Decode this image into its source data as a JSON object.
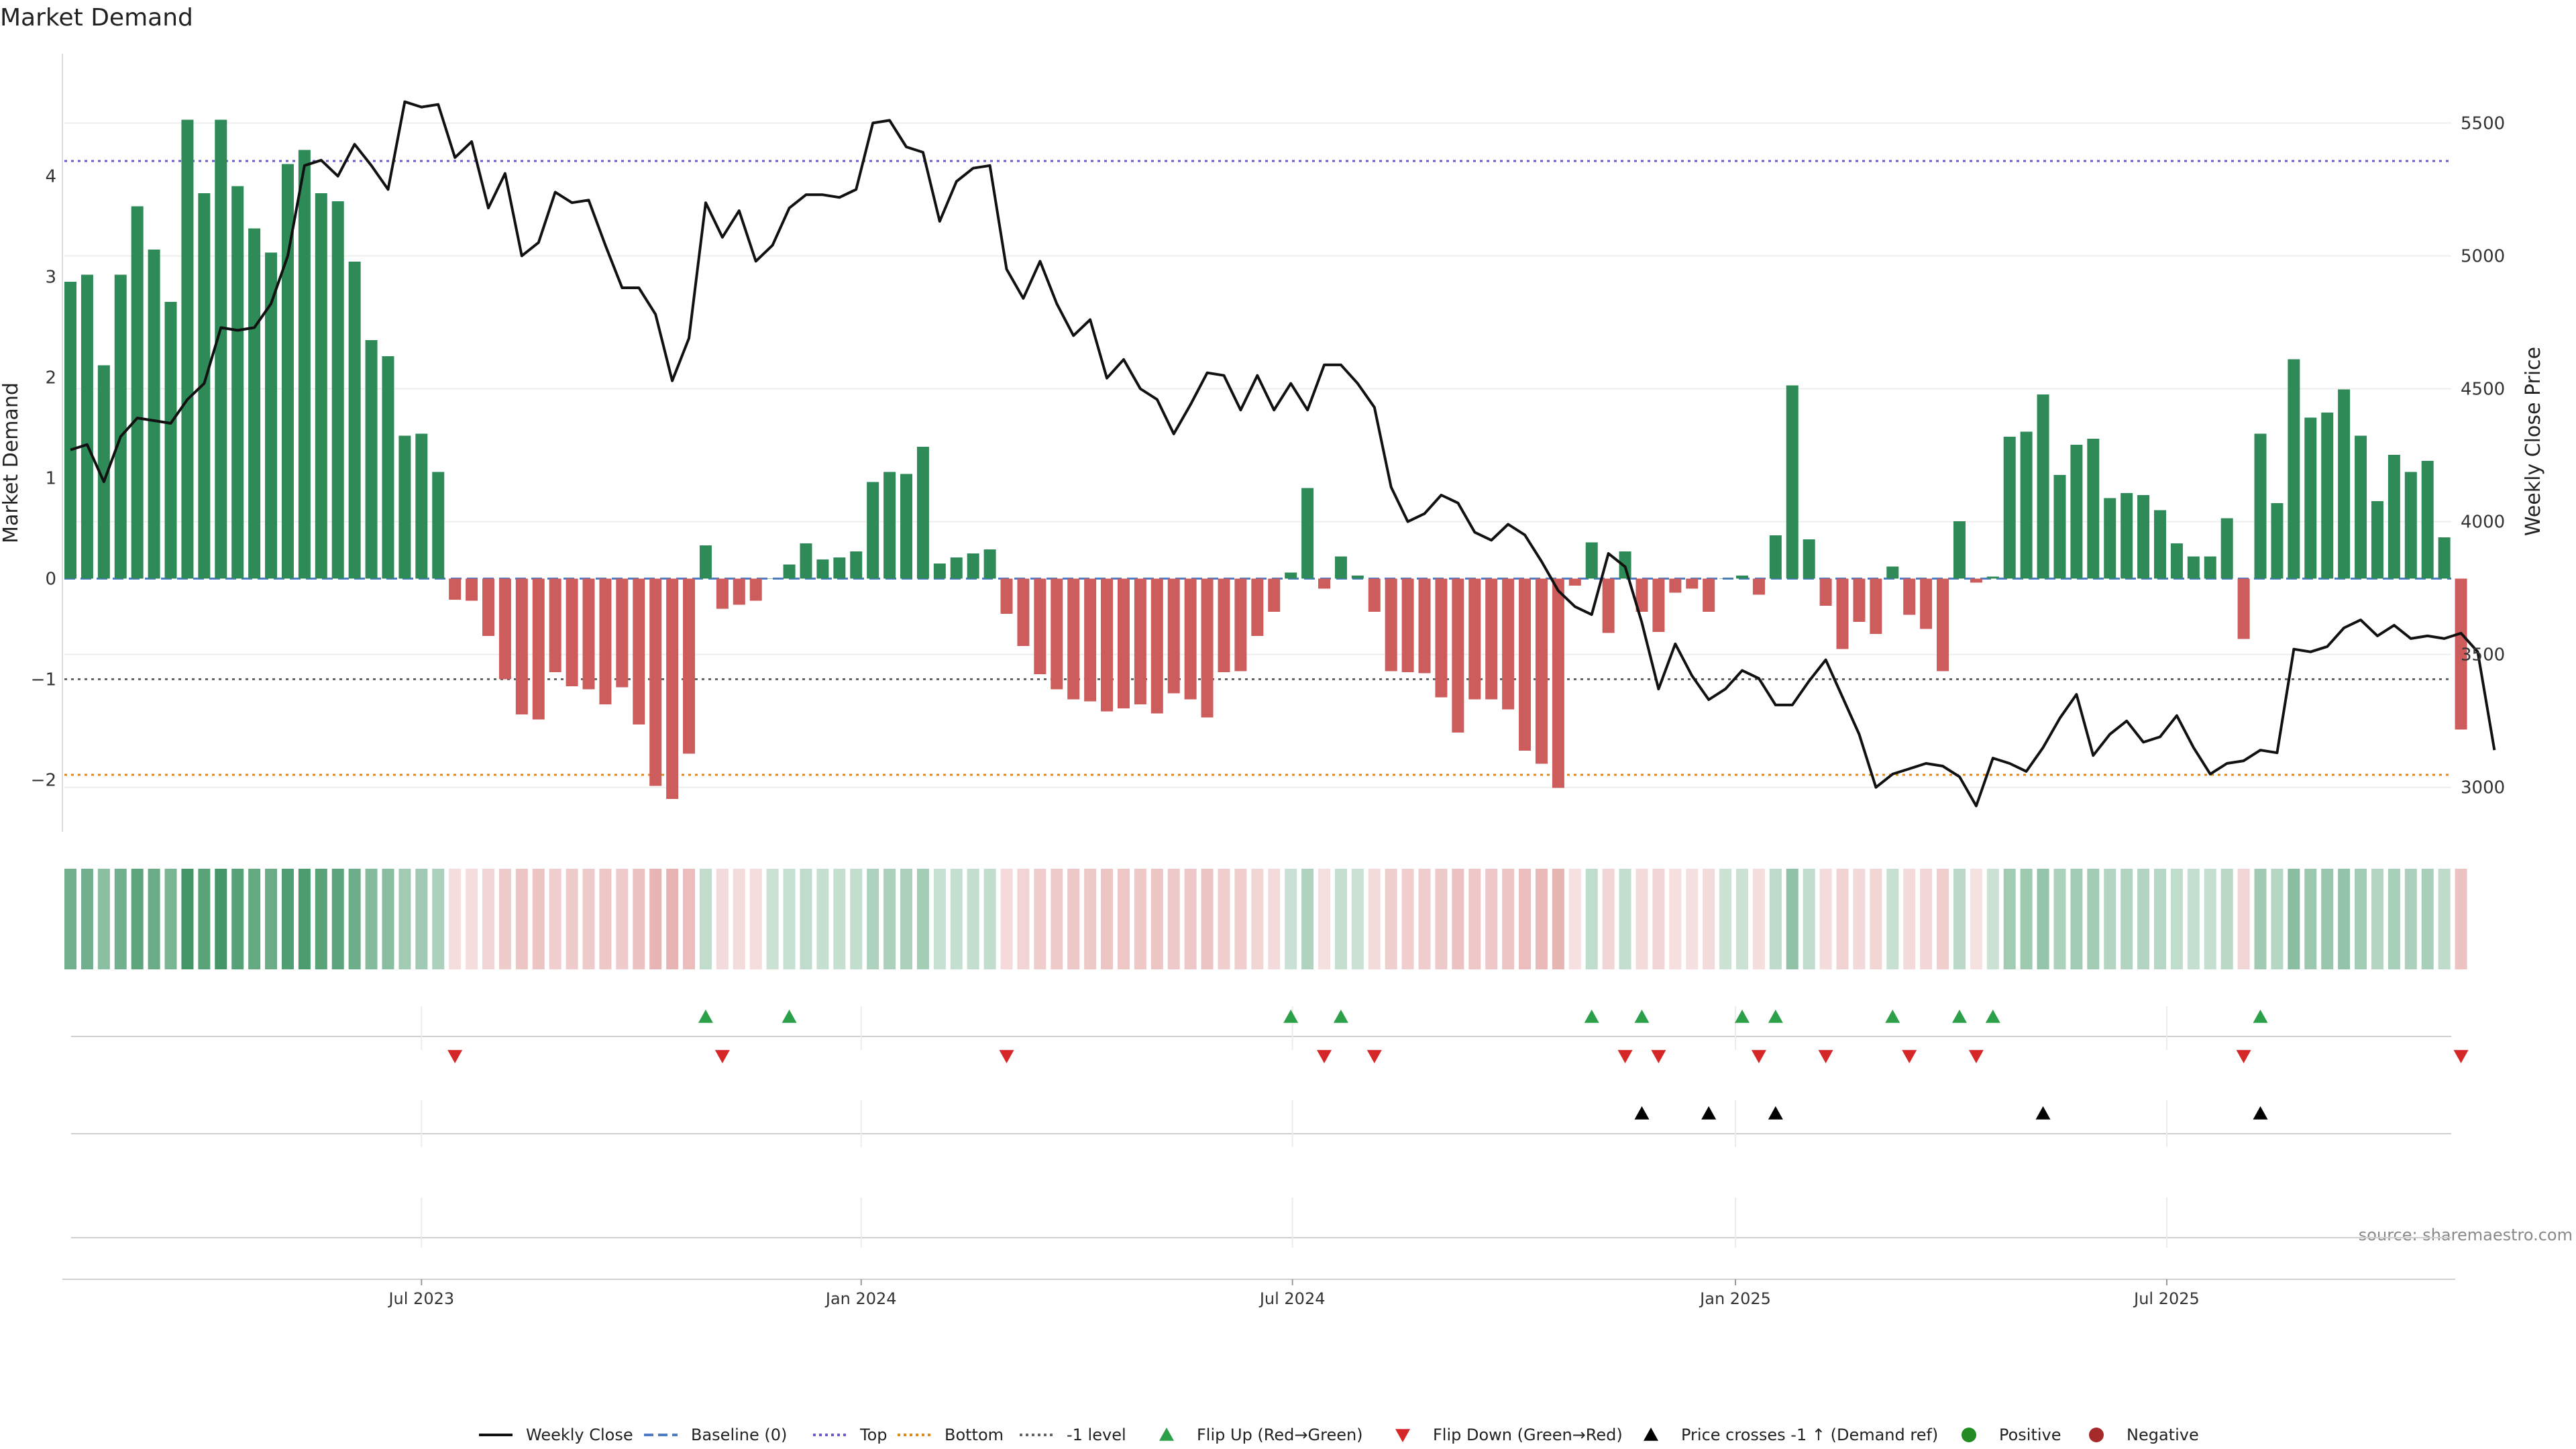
{
  "colors": {
    "positive": "#2e8b57",
    "negative": "#cd5c5c",
    "price_line": "#111111",
    "top_line": "#6a5acd",
    "bottom_line": "#e08a1e",
    "minus1_line": "#666666",
    "baseline": "#4f7cc4",
    "flip_up": "#2ca048",
    "flip_down": "#d62728",
    "cross": "#000000",
    "positive_dot": "#228b22",
    "negative_dot": "#a52a2a"
  },
  "chart_data": {
    "type": "bar",
    "title": "Market Demand",
    "ylabel": "Market Demand",
    "y2label": "Weekly Close Price",
    "source": "source: sharemaestro.com",
    "ylim": [
      -2.55,
      4.95
    ],
    "y2lim": [
      2820,
      5660
    ],
    "yticks": [
      -2,
      -1,
      0,
      1,
      2,
      3,
      4
    ],
    "ytick_labels": [
      "−2",
      "−1",
      "0",
      "1",
      "2",
      "3",
      "4"
    ],
    "y2ticks": [
      3000,
      3500,
      4000,
      4500,
      5000,
      5500
    ],
    "y2tick_labels": [
      "3000",
      "3500",
      "4000",
      "4500",
      "5000",
      "5500"
    ],
    "levels": {
      "top": 4.15,
      "bottom": -1.95,
      "minus1": -1.0,
      "baseline": 0
    },
    "weeks": 144,
    "first_week": "2023-03-03",
    "xticks": [
      {
        "label": "Jul 2023",
        "week": 21
      },
      {
        "label": "Jan 2024",
        "week": 47.3
      },
      {
        "label": "Jul 2024",
        "week": 73.1
      },
      {
        "label": "Jan 2025",
        "week": 99.6
      },
      {
        "label": "Jul 2025",
        "week": 125.4
      }
    ],
    "demand": [
      2.95,
      3.02,
      2.12,
      3.02,
      3.7,
      3.27,
      2.75,
      4.56,
      3.83,
      4.56,
      3.9,
      3.48,
      3.24,
      4.12,
      4.26,
      3.83,
      3.75,
      3.15,
      2.37,
      2.21,
      1.42,
      1.44,
      1.06,
      -0.21,
      -0.22,
      -0.57,
      -1.0,
      -1.35,
      -1.4,
      -0.93,
      -1.07,
      -1.1,
      -1.25,
      -1.08,
      -1.45,
      -2.06,
      -2.19,
      -1.74,
      0.33,
      -0.3,
      -0.26,
      -0.22,
      0.0,
      0.14,
      0.35,
      0.19,
      0.21,
      0.27,
      0.96,
      1.06,
      1.04,
      1.31,
      0.15,
      0.21,
      0.25,
      0.29,
      -0.35,
      -0.67,
      -0.95,
      -1.1,
      -1.2,
      -1.22,
      -1.32,
      -1.29,
      -1.25,
      -1.34,
      -1.14,
      -1.2,
      -1.38,
      -0.93,
      -0.92,
      -0.57,
      -0.33,
      0.06,
      0.9,
      -0.1,
      0.22,
      0.03,
      -0.33,
      -0.92,
      -0.93,
      -0.94,
      -1.18,
      -1.53,
      -1.2,
      -1.2,
      -1.3,
      -1.71,
      -1.84,
      -2.08,
      -0.07,
      0.36,
      -0.54,
      0.27,
      -0.33,
      -0.53,
      -0.14,
      -0.1,
      -0.33,
      0.0,
      0.03,
      -0.16,
      0.43,
      1.92,
      0.39,
      -0.27,
      -0.7,
      -0.43,
      -0.55,
      0.12,
      -0.36,
      -0.5,
      -0.92,
      0.57,
      -0.04,
      0.02,
      1.41,
      1.46,
      1.83,
      1.03,
      1.33,
      1.39,
      0.8,
      0.85,
      0.83,
      0.68,
      0.35,
      0.22,
      0.22,
      0.6,
      -0.6,
      1.44,
      0.75,
      2.18,
      1.6,
      1.65,
      1.88,
      1.42,
      0.77,
      1.23,
      1.06,
      1.17,
      0.41,
      -1.5
    ],
    "price": [
      4270,
      4290,
      4150,
      4320,
      4390,
      4380,
      4370,
      4460,
      4520,
      4730,
      4720,
      4730,
      4820,
      5000,
      5340,
      5360,
      5300,
      5420,
      5340,
      5250,
      5580,
      5560,
      5570,
      5370,
      5430,
      5180,
      5310,
      5000,
      5050,
      5240,
      5200,
      5210,
      5040,
      4880,
      4880,
      4780,
      4530,
      4690,
      5200,
      5070,
      5170,
      4980,
      5040,
      5180,
      5230,
      5230,
      5220,
      5250,
      5500,
      5510,
      5410,
      5390,
      5130,
      5280,
      5330,
      5340,
      4950,
      4840,
      4980,
      4820,
      4700,
      4760,
      4540,
      4610,
      4500,
      4460,
      4330,
      4440,
      4560,
      4550,
      4420,
      4550,
      4420,
      4520,
      4420,
      4590,
      4590,
      4520,
      4430,
      4130,
      4000,
      4030,
      4100,
      4070,
      3960,
      3930,
      3990,
      3950,
      3850,
      3740,
      3680,
      3650,
      3880,
      3830,
      3620,
      3370,
      3540,
      3420,
      3330,
      3370,
      3440,
      3410,
      3310,
      3310,
      3400,
      3480,
      3340,
      3200,
      3000,
      3050,
      3070,
      3090,
      3080,
      3040,
      2930,
      3110,
      3090,
      3060,
      3150,
      3260,
      3350,
      3120,
      3200,
      3250,
      3170,
      3190,
      3270,
      3150,
      3050,
      3090,
      3100,
      3140,
      3130,
      3520,
      3510,
      3530,
      3600,
      3630,
      3570,
      3610,
      3560,
      3570,
      3560,
      3580,
      3510,
      3140
    ],
    "flip_up_weeks": [
      38,
      43,
      73,
      76,
      91,
      94,
      100,
      102,
      109,
      113,
      115,
      131
    ],
    "flip_down_weeks": [
      23,
      39,
      56,
      75,
      78,
      93,
      95,
      101,
      105,
      110,
      114,
      130,
      143
    ],
    "cross_weeks": [
      94,
      98,
      102,
      118,
      131
    ]
  },
  "legend": [
    {
      "label": "Weekly Close",
      "kind": "line-solid",
      "color": "#111111"
    },
    {
      "label": "Baseline (0)",
      "kind": "line-dash",
      "color": "#4f7cc4"
    },
    {
      "label": "Top",
      "kind": "line-dot",
      "color": "#6a5acd"
    },
    {
      "label": "Bottom",
      "kind": "line-dot",
      "color": "#e08a1e"
    },
    {
      "label": "-1 level",
      "kind": "line-dot",
      "color": "#666666"
    },
    {
      "label": "Flip Up (Red→Green)",
      "kind": "tri-up",
      "color": "#2ca048"
    },
    {
      "label": "Flip Down (Green→Red)",
      "kind": "tri-down",
      "color": "#d62728"
    },
    {
      "label": "Price crosses -1 ↑ (Demand ref)",
      "kind": "tri-up",
      "color": "#000000"
    },
    {
      "label": "Positive",
      "kind": "dot",
      "color": "#228b22"
    },
    {
      "label": "Negative",
      "kind": "dot",
      "color": "#a52a2a"
    }
  ]
}
